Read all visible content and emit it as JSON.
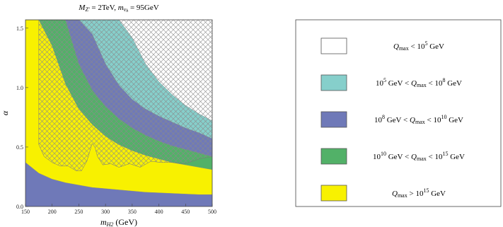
{
  "chart_data": {
    "type": "area",
    "title": "M_Z' = 2TeV, m_νh = 95GeV",
    "title_parts": {
      "m_label": "M",
      "m_sub": "Z'",
      "m_value": " = 2TeV, ",
      "nu_label": "m",
      "nu_sub": "ν",
      "nu_subsub": "h",
      "nu_value": " = 95GeV"
    },
    "xlabel": "m_H2 (GeV)",
    "xlabel_parts": {
      "var": "m",
      "sub": "H2",
      "unit": " (GeV)"
    },
    "ylabel": "α",
    "xlim": [
      150,
      500
    ],
    "ylim": [
      0,
      1.57
    ],
    "x_ticks": [
      "150",
      "200",
      "250",
      "300",
      "350",
      "400",
      "450",
      "500"
    ],
    "x_tick_values": [
      150,
      200,
      250,
      300,
      350,
      400,
      450,
      500
    ],
    "y_ticks": [
      "0.0",
      "0.5",
      "1.0",
      "1.5"
    ],
    "y_tick_values": [
      0,
      0.5,
      1.0,
      1.5
    ],
    "grid": false,
    "legend_placement": "right",
    "colors": {
      "white": "#ffffff",
      "cyan": "#86cfcb",
      "blue": "#6f79b8",
      "green": "#52b168",
      "yellow": "#f8f100",
      "hatch": "#8a8a8a",
      "frame": "#444444"
    },
    "x": [
      150,
      175,
      200,
      225,
      250,
      275,
      300,
      325,
      350,
      375,
      400,
      425,
      450,
      475,
      500
    ],
    "series": [
      {
        "color_key": "yellow",
        "lower": [
          0.37,
          0.28,
          0.23,
          0.2,
          0.18,
          0.16,
          0.15,
          0.14,
          0.13,
          0.12,
          0.115,
          0.11,
          0.105,
          0.1,
          0.1
        ]
      },
      {
        "color_key": "green",
        "lower": [
          1.57,
          1.57,
          1.35,
          1.03,
          0.82,
          0.69,
          0.59,
          0.52,
          0.47,
          0.43,
          0.4,
          0.37,
          0.35,
          0.33,
          0.31
        ]
      },
      {
        "color_key": "blue",
        "lower": [
          1.57,
          1.57,
          1.57,
          1.57,
          1.2,
          0.98,
          0.84,
          0.74,
          0.66,
          0.6,
          0.55,
          0.51,
          0.48,
          0.45,
          0.42
        ]
      },
      {
        "color_key": "cyan",
        "lower": [
          1.57,
          1.57,
          1.57,
          1.57,
          1.57,
          1.45,
          1.2,
          1.02,
          0.9,
          0.82,
          0.76,
          0.71,
          0.66,
          0.62,
          0.57
        ]
      },
      {
        "color_key": "white",
        "lower": [
          1.57,
          1.57,
          1.57,
          1.57,
          1.57,
          1.57,
          1.57,
          1.57,
          1.42,
          1.2,
          1.05,
          0.94,
          0.85,
          0.78,
          0.72
        ]
      }
    ],
    "excluded_region": {
      "lower_x": [
        175,
        185,
        200,
        215,
        230,
        245,
        255,
        265,
        275,
        280,
        285,
        295,
        310,
        325,
        345,
        365,
        385,
        405,
        425,
        450,
        475,
        500
      ],
      "lower_y": [
        0.52,
        0.42,
        0.37,
        0.34,
        0.34,
        0.3,
        0.3,
        0.38,
        0.53,
        0.5,
        0.42,
        0.35,
        0.36,
        0.33,
        0.36,
        0.33,
        0.38,
        0.37,
        0.37,
        0.36,
        0.4,
        0.42
      ],
      "upper": 1.57,
      "left_x": 175
    },
    "legend": [
      {
        "color_key": "white",
        "pre": "",
        "mid": "Q",
        "mid_sub": "max",
        "post": " < 10",
        "post_sup": "5",
        "tail": " GeV"
      },
      {
        "color_key": "cyan",
        "pre": "10",
        "pre_sup": "5",
        "pre_tail": " GeV < ",
        "mid": "Q",
        "mid_sub": "max",
        "post": " < 10",
        "post_sup": "8",
        "tail": " GeV"
      },
      {
        "color_key": "blue",
        "pre": "10",
        "pre_sup": "8",
        "pre_tail": " GeV < ",
        "mid": "Q",
        "mid_sub": "max",
        "post": " < 10",
        "post_sup": "10",
        "tail": " GeV"
      },
      {
        "color_key": "green",
        "pre": "10",
        "pre_sup": "10",
        "pre_tail": " GeV < ",
        "mid": "Q",
        "mid_sub": "max",
        "post": " < 10",
        "post_sup": "15",
        "tail": " GeV"
      },
      {
        "color_key": "yellow",
        "pre": "",
        "mid": "Q",
        "mid_sub": "max",
        "post": " > 10",
        "post_sup": "15",
        "tail": " GeV"
      }
    ]
  }
}
